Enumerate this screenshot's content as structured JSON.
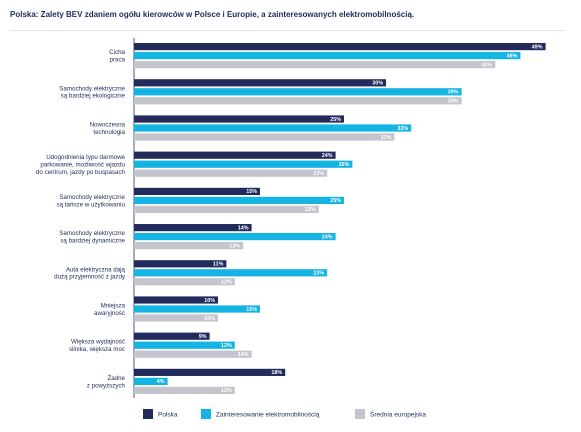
{
  "title": "Polska: Zalety BEV zdaniem ogółu kierowców w Polsce i Europie, a zainteresowanych elektromobilnością.",
  "chart_data": {
    "type": "bar",
    "orientation": "horizontal",
    "title": "Polska: Zalety BEV zdaniem ogółu kierowców w Polsce i Europie, a zainteresowanych elektromobilnością.",
    "xlabel": "",
    "ylabel": "",
    "xlim": [
      0,
      50
    ],
    "grid": false,
    "legend_position": "bottom",
    "categories": [
      [
        "Cicha",
        "praca"
      ],
      [
        "Samochody elektryczne",
        "są bardziej ekologiczne"
      ],
      [
        "Nowoczesna",
        "technologia"
      ],
      [
        "Udogodnienia typu darmowe",
        "parkowanie, możliwość wjazdu",
        "do centrum, jazdy po buspasach"
      ],
      [
        "Samochody elektryczne",
        "są tańsze w użytkowaniu"
      ],
      [
        "Samochody elektryczne",
        "są bardziej dynamiczne"
      ],
      [
        "Auta elektryczna dają",
        "dużą przyjemność z jazdy"
      ],
      [
        "Mniejsza",
        "awaryjność"
      ],
      [
        "Większa wydajność",
        "silnika, większa moc"
      ],
      [
        "Żadne",
        "z powyższych"
      ]
    ],
    "series": [
      {
        "name": "Polska",
        "color": "#222b5c",
        "values": [
          49,
          30,
          25,
          24,
          15,
          14,
          11,
          10,
          9,
          18
        ],
        "labels": [
          "49%",
          "30%",
          "25%",
          "24%",
          "15%",
          "14%",
          "11%",
          "10%",
          "9%",
          "18%"
        ]
      },
      {
        "name": "Zainteresowanie elektromobilnością",
        "color": "#14b4e3",
        "values": [
          46,
          39,
          33,
          26,
          25,
          24,
          23,
          15,
          12,
          4
        ],
        "labels": [
          "46%",
          "39%",
          "33%",
          "26%",
          "25%",
          "24%",
          "23%",
          "15%",
          "12%",
          "4%"
        ]
      },
      {
        "name": "Średnia europejska",
        "color": "#c3c4cc",
        "values": [
          43,
          39,
          31,
          23,
          22,
          13,
          12,
          10,
          14,
          12
        ],
        "labels": [
          "43%",
          "39%",
          "31%",
          "23%",
          "22%",
          "13%",
          "12%",
          "10%",
          "14%",
          "12%"
        ]
      }
    ]
  }
}
